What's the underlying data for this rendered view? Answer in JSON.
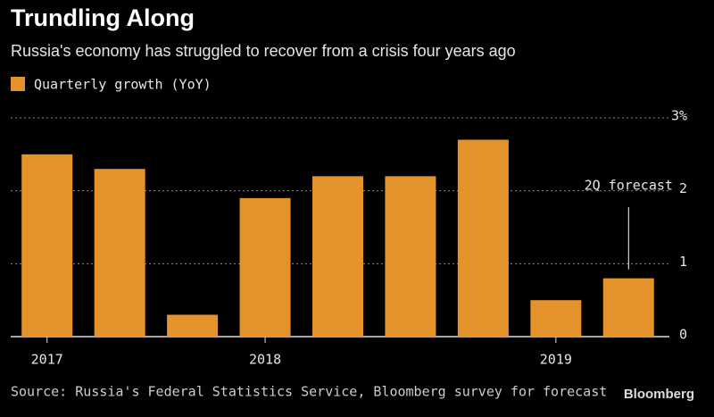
{
  "chart_data": {
    "type": "bar",
    "title": "Trundling Along",
    "subtitle": "Russia's economy has struggled to recover from a crisis four years ago",
    "source": "Source: Russia's Federal Statistics Service, Bloomberg survey for forecast",
    "brand": "Bloomberg",
    "series": [
      {
        "name": "Quarterly growth (YoY)",
        "color": "#e3932a",
        "values": [
          2.5,
          2.3,
          0.3,
          1.9,
          2.2,
          2.2,
          2.7,
          0.5,
          0.8
        ]
      }
    ],
    "categories": [
      "2017",
      null,
      null,
      "2018",
      null,
      null,
      null,
      "2019",
      null
    ],
    "ylim": [
      0,
      3
    ],
    "yticks": [
      0,
      1,
      2,
      {
        "value": 3,
        "label": "3%"
      }
    ],
    "grid": true,
    "annotations": [
      {
        "text": "2Q forecast",
        "index": 8
      }
    ]
  }
}
